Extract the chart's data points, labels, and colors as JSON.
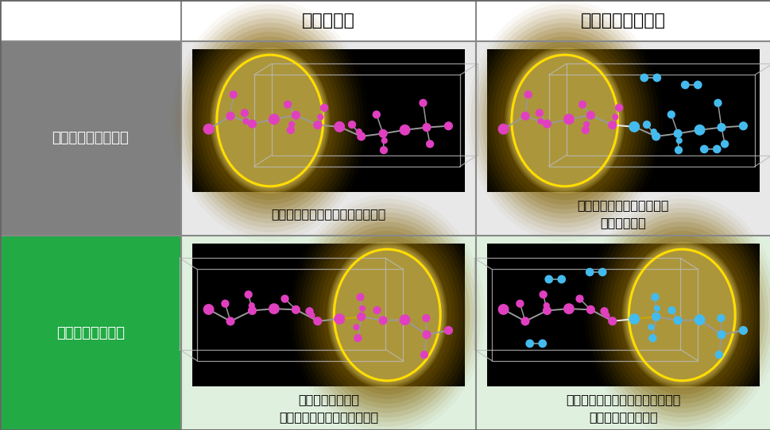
{
  "bg_color": "#ffffff",
  "border_color": "#888888",
  "header_bg": "#ffffff",
  "row1_label_bg": "#808080",
  "row2_label_bg": "#22aa44",
  "row1_label_text": "当社従来のポリマー",
  "row2_label_text": "水素添加ポリマー",
  "col1_header": "強い結合力",
  "col2_header": "切れても戻る結合",
  "row1_col1_caption": "力を加えられることで切れやすい",
  "row1_col2_caption": "切れた部分に酸素が結合し\n元に戻らない",
  "row2_col1_caption": "強い結合力により\n力を加えられても切れにくい",
  "row2_col2_caption": "切れた部分に酸素が結合しにくく\n元に戻ることがある",
  "label_text_color": "#ffffff",
  "header_text_color": "#000000",
  "caption_text_color": "#000000",
  "cell_bg_row1": "#e8e8e8",
  "cell_bg_row2": "#dff0df"
}
